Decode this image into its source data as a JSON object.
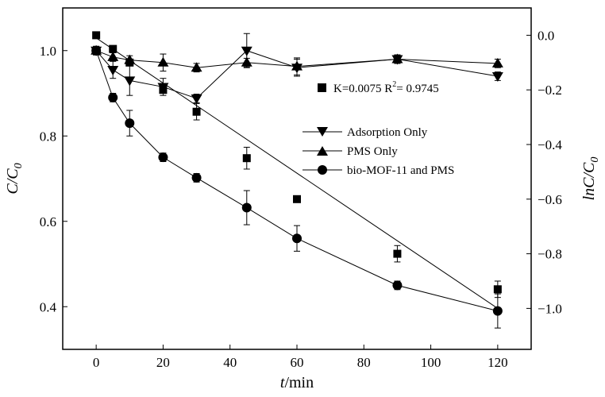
{
  "chart_data": {
    "type": "scatter",
    "x_axis": {
      "label_italic": "t",
      "label_rest": "/min",
      "range": [
        -10,
        130
      ],
      "ticks": [
        0,
        20,
        40,
        60,
        80,
        100,
        120
      ]
    },
    "y_left": {
      "label_main": "C/C",
      "label_sub": "0",
      "range": [
        0.3,
        1.1
      ],
      "ticks": [
        "0.4",
        "0.6",
        "0.8",
        "1.0"
      ]
    },
    "y_right": {
      "label_main": "lnC/C",
      "label_sub": "0",
      "range": [
        -1.15,
        0.1
      ],
      "ticks": [
        "0.0",
        "−0.2",
        "−0.4",
        "−0.6",
        "−0.8",
        "−1.0"
      ]
    },
    "series": [
      {
        "name": "Adsorption Only",
        "marker": "triangle-down",
        "axis": "left",
        "x": [
          0,
          5,
          10,
          20,
          30,
          45,
          60,
          90,
          120
        ],
        "y": [
          1.0,
          0.955,
          0.93,
          0.915,
          0.888,
          1.0,
          0.96,
          0.98,
          0.94
        ],
        "err": [
          0.01,
          0.02,
          0.035,
          0.02,
          0.01,
          0.04,
          0.02,
          0.01,
          0.01
        ]
      },
      {
        "name": "PMS Only",
        "marker": "triangle-up",
        "axis": "left",
        "x": [
          0,
          5,
          10,
          20,
          30,
          45,
          60,
          90,
          120
        ],
        "y": [
          1.0,
          0.985,
          0.978,
          0.972,
          0.96,
          0.972,
          0.963,
          0.98,
          0.97
        ],
        "err": [
          0.01,
          0.01,
          0.01,
          0.02,
          0.01,
          0.01,
          0.02,
          0.01,
          0.01
        ]
      },
      {
        "name": "bio-MOF-11 and PMS",
        "marker": "circle",
        "axis": "left",
        "x": [
          0,
          5,
          10,
          20,
          30,
          45,
          60,
          90,
          120
        ],
        "y": [
          1.0,
          0.89,
          0.83,
          0.75,
          0.702,
          0.632,
          0.56,
          0.45,
          0.39
        ],
        "err": [
          0.01,
          0.01,
          0.03,
          0.01,
          0.01,
          0.04,
          0.03,
          0.01,
          0.04
        ]
      },
      {
        "name": "lnC/C0",
        "marker": "square",
        "axis": "right",
        "x": [
          0,
          5,
          10,
          20,
          30,
          45,
          60,
          90,
          120
        ],
        "y": [
          0.0,
          -0.05,
          -0.1,
          -0.2,
          -0.28,
          -0.45,
          -0.6,
          -0.8,
          -0.93
        ],
        "err": [
          0,
          0,
          0,
          0,
          0.03,
          0.04,
          0,
          0.03,
          0.03
        ]
      }
    ],
    "fit_line": {
      "axis": "right",
      "x": [
        0,
        120
      ],
      "y": [
        -0.01,
        -1.0
      ]
    },
    "annotation": {
      "text_a": "K=0.0075 R",
      "sup": "2",
      "text_b": "= 0.9745",
      "marker": "square"
    },
    "legend": {
      "position": "center-right",
      "entries": [
        "Adsorption Only",
        "PMS Only",
        "bio-MOF-11 and PMS"
      ]
    }
  }
}
